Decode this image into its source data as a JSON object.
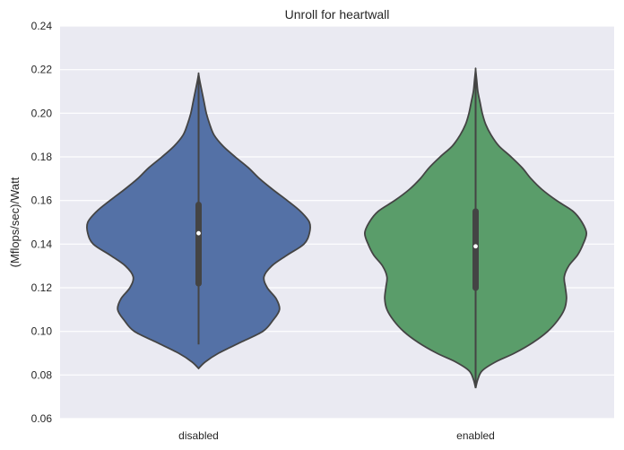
{
  "chart_data": {
    "type": "violin",
    "title": "Unroll for heartwall",
    "xlabel": "",
    "ylabel": "(Mflops/sec)/Watt",
    "categories": [
      "disabled",
      "enabled"
    ],
    "ylim": [
      0.06,
      0.24
    ],
    "yticks": [
      "0.06",
      "0.08",
      "0.10",
      "0.12",
      "0.14",
      "0.16",
      "0.18",
      "0.20",
      "0.22",
      "0.24"
    ],
    "grid": true,
    "series": [
      {
        "category": "disabled",
        "color": "#5471a6",
        "median": 0.145,
        "q1": 0.122,
        "q3": 0.158,
        "whisker_low": 0.094,
        "whisker_high": 0.217,
        "density": [
          [
            0.083,
            0.0
          ],
          [
            0.086,
            0.06
          ],
          [
            0.09,
            0.18
          ],
          [
            0.095,
            0.38
          ],
          [
            0.1,
            0.58
          ],
          [
            0.105,
            0.67
          ],
          [
            0.11,
            0.73
          ],
          [
            0.115,
            0.7
          ],
          [
            0.12,
            0.62
          ],
          [
            0.125,
            0.59
          ],
          [
            0.13,
            0.66
          ],
          [
            0.135,
            0.8
          ],
          [
            0.14,
            0.95
          ],
          [
            0.145,
            1.0
          ],
          [
            0.15,
            1.0
          ],
          [
            0.155,
            0.92
          ],
          [
            0.16,
            0.8
          ],
          [
            0.165,
            0.67
          ],
          [
            0.17,
            0.55
          ],
          [
            0.175,
            0.45
          ],
          [
            0.18,
            0.33
          ],
          [
            0.185,
            0.22
          ],
          [
            0.19,
            0.14
          ],
          [
            0.195,
            0.1
          ],
          [
            0.2,
            0.07
          ],
          [
            0.205,
            0.05
          ],
          [
            0.21,
            0.03
          ],
          [
            0.215,
            0.01
          ],
          [
            0.218,
            0.0
          ]
        ]
      },
      {
        "category": "enabled",
        "color": "#5a9d6a",
        "median": 0.139,
        "q1": 0.12,
        "q3": 0.155,
        "whisker_low": 0.075,
        "whisker_high": 0.22,
        "density": [
          [
            0.074,
            0.0
          ],
          [
            0.078,
            0.02
          ],
          [
            0.082,
            0.06
          ],
          [
            0.086,
            0.18
          ],
          [
            0.09,
            0.35
          ],
          [
            0.095,
            0.52
          ],
          [
            0.1,
            0.65
          ],
          [
            0.105,
            0.74
          ],
          [
            0.11,
            0.8
          ],
          [
            0.115,
            0.82
          ],
          [
            0.12,
            0.81
          ],
          [
            0.125,
            0.8
          ],
          [
            0.13,
            0.84
          ],
          [
            0.135,
            0.92
          ],
          [
            0.14,
            0.97
          ],
          [
            0.145,
            1.0
          ],
          [
            0.15,
            0.96
          ],
          [
            0.155,
            0.88
          ],
          [
            0.16,
            0.73
          ],
          [
            0.165,
            0.6
          ],
          [
            0.17,
            0.5
          ],
          [
            0.175,
            0.42
          ],
          [
            0.18,
            0.32
          ],
          [
            0.185,
            0.21
          ],
          [
            0.19,
            0.14
          ],
          [
            0.195,
            0.09
          ],
          [
            0.2,
            0.06
          ],
          [
            0.205,
            0.04
          ],
          [
            0.21,
            0.02
          ],
          [
            0.215,
            0.01
          ],
          [
            0.22,
            0.0
          ]
        ]
      }
    ]
  }
}
